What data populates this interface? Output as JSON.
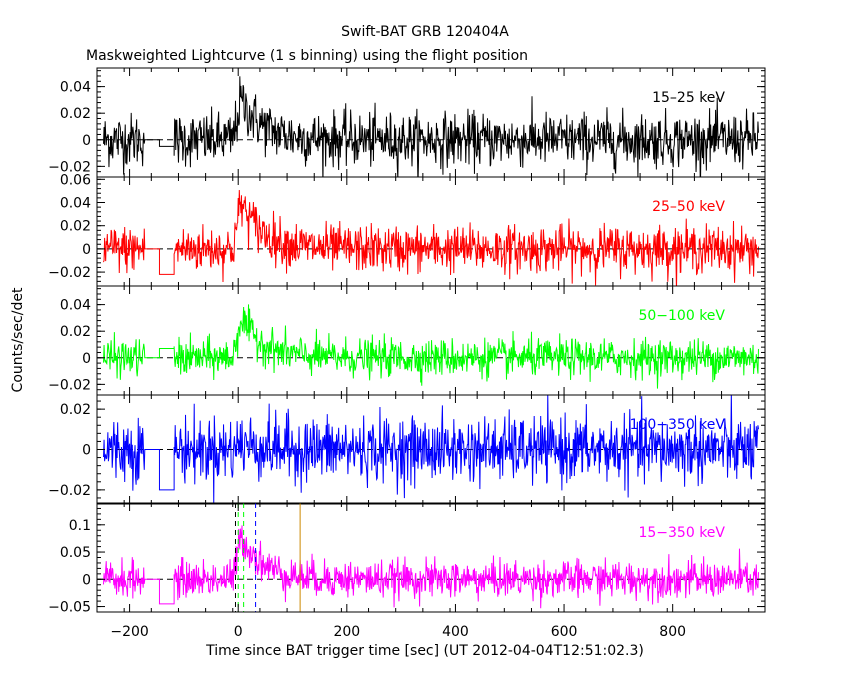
{
  "figure": {
    "title": "Swift-BAT GRB 120404A",
    "subtitle": "Maskweighted Lightcurve (1 s binning) using the flight position",
    "xlabel": "Time since BAT trigger time [sec] (UT 2012-04-04T12:51:02.3)",
    "ylabel": "Counts/sec/det"
  },
  "chart_data": [
    {
      "type": "line",
      "series": [
        {
          "name": "15–25 keV",
          "color": "#000000"
        }
      ],
      "xlim": [
        -260,
        970
      ],
      "ylim": [
        -0.028,
        0.054
      ],
      "yticks": [
        -0.02,
        0,
        0.02,
        0.04
      ],
      "ytick_labels": [
        "−0.02",
        "0",
        "0.02",
        "0.04"
      ],
      "baseline": 0,
      "burst_amplitude": 0.03,
      "noise": 0.01,
      "gap_level": -0.005
    },
    {
      "type": "line",
      "series": [
        {
          "name": "25–50 keV",
          "color": "#ff0000"
        }
      ],
      "xlim": [
        -260,
        970
      ],
      "ylim": [
        -0.032,
        0.062
      ],
      "yticks": [
        -0.02,
        0,
        0.02,
        0.04,
        0.06
      ],
      "ytick_labels": [
        "−0.02",
        "0",
        "0.02",
        "0.04",
        "0.06"
      ],
      "baseline": 0,
      "burst_amplitude": 0.04,
      "noise": 0.01,
      "gap_level": -0.022
    },
    {
      "type": "line",
      "series": [
        {
          "name": "50−100 keV",
          "color": "#00ff00"
        }
      ],
      "xlim": [
        -260,
        970
      ],
      "ylim": [
        -0.028,
        0.054
      ],
      "yticks": [
        -0.02,
        0,
        0.02,
        0.04
      ],
      "ytick_labels": [
        "−0.02",
        "0",
        "0.02",
        "0.04"
      ],
      "baseline": 0,
      "burst_amplitude": 0.03,
      "noise": 0.007,
      "gap_level": 0.007
    },
    {
      "type": "line",
      "series": [
        {
          "name": "100−350 keV",
          "color": "#0000ff"
        }
      ],
      "xlim": [
        -260,
        970
      ],
      "ylim": [
        -0.027,
        0.027
      ],
      "yticks": [
        -0.02,
        0,
        0.02
      ],
      "ytick_labels": [
        "−0.02",
        "0",
        "0.02"
      ],
      "baseline": 0,
      "burst_amplitude": 0.003,
      "noise": 0.008,
      "gap_level": -0.02
    },
    {
      "type": "line",
      "series": [
        {
          "name": "15−350 keV",
          "color": "#ff00ff"
        }
      ],
      "xlim": [
        -260,
        970
      ],
      "ylim": [
        -0.06,
        0.14
      ],
      "yticks": [
        -0.05,
        0,
        0.05,
        0.1
      ],
      "ytick_labels": [
        "−0.05",
        "0",
        "0.05",
        "0.1"
      ],
      "baseline": 0,
      "burst_amplitude": 0.08,
      "noise": 0.017,
      "gap_level": -0.045,
      "markers": [
        {
          "x": -5,
          "color": "#000000",
          "style": "dashed"
        },
        {
          "x": 0,
          "color": "#00ff00",
          "style": "dashed"
        },
        {
          "x": 10,
          "color": "#00ff00",
          "style": "dashed"
        },
        {
          "x": 32,
          "color": "#0000ff",
          "style": "dashed"
        },
        {
          "x": 114,
          "color": "#cc8800",
          "style": "solid"
        }
      ]
    }
  ],
  "xaxis": {
    "ticks": [
      -200,
      0,
      200,
      400,
      600,
      800
    ],
    "tick_labels": [
      "−200",
      "0",
      "200",
      "400",
      "600",
      "800"
    ]
  },
  "shared": {
    "data_start": -248,
    "gap_start": -172,
    "gap_mid": -145,
    "gap_end": -118,
    "data_end": 958,
    "burst_peak": 5,
    "burst_decay": 40
  }
}
